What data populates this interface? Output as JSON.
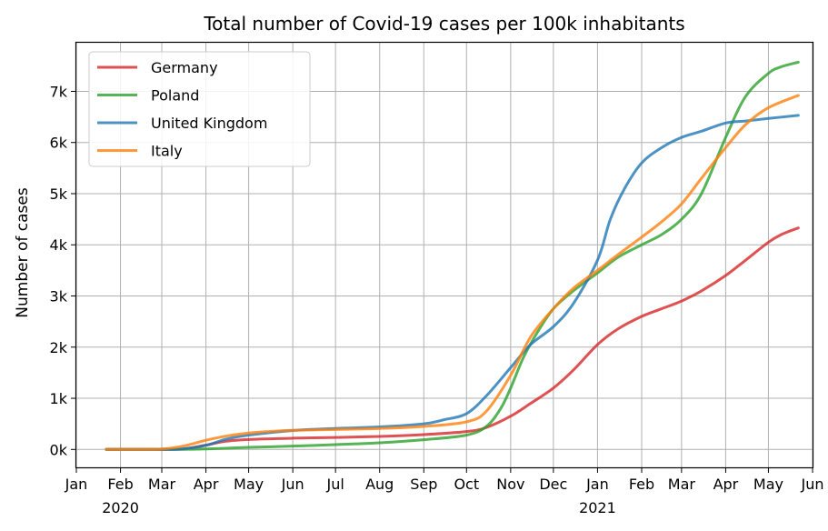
{
  "chart_data": {
    "type": "line",
    "title": "Total number of Covid-19 cases per 100k inhabitants",
    "xlabel": "",
    "ylabel": "Number of cases",
    "xlim": [
      "2020-01-01",
      "2021-06-01"
    ],
    "ylim": [
      -350,
      7950
    ],
    "grid": true,
    "legend_position": "top-left",
    "x_ticks": [
      {
        "date": "2020-01-01",
        "label": "Jan"
      },
      {
        "date": "2020-02-01",
        "label": "Feb"
      },
      {
        "date": "2020-03-01",
        "label": "Mar"
      },
      {
        "date": "2020-04-01",
        "label": "Apr"
      },
      {
        "date": "2020-05-01",
        "label": "May"
      },
      {
        "date": "2020-06-01",
        "label": "Jun"
      },
      {
        "date": "2020-07-01",
        "label": "Jul"
      },
      {
        "date": "2020-08-01",
        "label": "Aug"
      },
      {
        "date": "2020-09-01",
        "label": "Sep"
      },
      {
        "date": "2020-10-01",
        "label": "Oct"
      },
      {
        "date": "2020-11-01",
        "label": "Nov"
      },
      {
        "date": "2020-12-01",
        "label": "Dec"
      },
      {
        "date": "2021-01-01",
        "label": "Jan"
      },
      {
        "date": "2021-02-01",
        "label": "Feb"
      },
      {
        "date": "2021-03-01",
        "label": "Mar"
      },
      {
        "date": "2021-04-01",
        "label": "Apr"
      },
      {
        "date": "2021-05-01",
        "label": "May"
      },
      {
        "date": "2021-06-01",
        "label": "Jun"
      }
    ],
    "year_labels": [
      {
        "date": "2020-02-01",
        "label": "2020"
      },
      {
        "date": "2021-01-01",
        "label": "2021"
      }
    ],
    "y_ticks": [
      {
        "value": 0,
        "label": "0k"
      },
      {
        "value": 1000,
        "label": "1k"
      },
      {
        "value": 2000,
        "label": "2k"
      },
      {
        "value": 3000,
        "label": "3k"
      },
      {
        "value": 4000,
        "label": "4k"
      },
      {
        "value": 5000,
        "label": "5k"
      },
      {
        "value": 6000,
        "label": "6k"
      },
      {
        "value": 7000,
        "label": "7k"
      }
    ],
    "series": [
      {
        "name": "Germany",
        "color": "#d62728",
        "points": [
          [
            "2020-01-22",
            0
          ],
          [
            "2020-03-01",
            0
          ],
          [
            "2020-03-15",
            6
          ],
          [
            "2020-04-01",
            85
          ],
          [
            "2020-04-15",
            160
          ],
          [
            "2020-05-01",
            195
          ],
          [
            "2020-06-01",
            220
          ],
          [
            "2020-07-01",
            235
          ],
          [
            "2020-08-01",
            255
          ],
          [
            "2020-09-01",
            290
          ],
          [
            "2020-10-01",
            350
          ],
          [
            "2020-10-15",
            430
          ],
          [
            "2020-11-01",
            650
          ],
          [
            "2020-11-15",
            900
          ],
          [
            "2020-12-01",
            1200
          ],
          [
            "2020-12-15",
            1550
          ],
          [
            "2021-01-01",
            2050
          ],
          [
            "2021-01-15",
            2350
          ],
          [
            "2021-02-01",
            2600
          ],
          [
            "2021-02-15",
            2750
          ],
          [
            "2021-03-01",
            2900
          ],
          [
            "2021-03-15",
            3100
          ],
          [
            "2021-04-01",
            3400
          ],
          [
            "2021-04-15",
            3700
          ],
          [
            "2021-05-01",
            4050
          ],
          [
            "2021-05-10",
            4200
          ],
          [
            "2021-05-22",
            4330
          ]
        ]
      },
      {
        "name": "Poland",
        "color": "#2ca02c",
        "points": [
          [
            "2020-01-22",
            0
          ],
          [
            "2020-03-10",
            0
          ],
          [
            "2020-04-01",
            10
          ],
          [
            "2020-05-01",
            40
          ],
          [
            "2020-06-01",
            65
          ],
          [
            "2020-07-01",
            95
          ],
          [
            "2020-08-01",
            130
          ],
          [
            "2020-09-01",
            190
          ],
          [
            "2020-10-01",
            280
          ],
          [
            "2020-10-15",
            450
          ],
          [
            "2020-10-25",
            800
          ],
          [
            "2020-11-01",
            1200
          ],
          [
            "2020-11-10",
            1800
          ],
          [
            "2020-11-20",
            2300
          ],
          [
            "2020-12-01",
            2750
          ],
          [
            "2020-12-15",
            3100
          ],
          [
            "2021-01-01",
            3450
          ],
          [
            "2021-01-15",
            3750
          ],
          [
            "2021-02-01",
            4000
          ],
          [
            "2021-02-15",
            4200
          ],
          [
            "2021-03-01",
            4500
          ],
          [
            "2021-03-15",
            5000
          ],
          [
            "2021-04-01",
            6100
          ],
          [
            "2021-04-15",
            6900
          ],
          [
            "2021-05-01",
            7350
          ],
          [
            "2021-05-10",
            7480
          ],
          [
            "2021-05-22",
            7570
          ]
        ]
      },
      {
        "name": "United Kingdom",
        "color": "#1f77b4",
        "points": [
          [
            "2020-01-22",
            0
          ],
          [
            "2020-03-01",
            0
          ],
          [
            "2020-03-15",
            10
          ],
          [
            "2020-04-01",
            80
          ],
          [
            "2020-04-15",
            200
          ],
          [
            "2020-05-01",
            280
          ],
          [
            "2020-06-01",
            370
          ],
          [
            "2020-07-01",
            410
          ],
          [
            "2020-08-01",
            440
          ],
          [
            "2020-09-01",
            500
          ],
          [
            "2020-09-15",
            580
          ],
          [
            "2020-10-01",
            700
          ],
          [
            "2020-10-15",
            1050
          ],
          [
            "2020-11-01",
            1600
          ],
          [
            "2020-11-15",
            2050
          ],
          [
            "2020-12-01",
            2400
          ],
          [
            "2020-12-15",
            2850
          ],
          [
            "2021-01-01",
            3700
          ],
          [
            "2021-01-10",
            4500
          ],
          [
            "2021-01-20",
            5100
          ],
          [
            "2021-02-01",
            5600
          ],
          [
            "2021-02-15",
            5900
          ],
          [
            "2021-03-01",
            6100
          ],
          [
            "2021-03-15",
            6220
          ],
          [
            "2021-04-01",
            6380
          ],
          [
            "2021-04-15",
            6420
          ],
          [
            "2021-05-01",
            6470
          ],
          [
            "2021-05-22",
            6530
          ]
        ]
      },
      {
        "name": "Italy",
        "color": "#ff7f0e",
        "points": [
          [
            "2020-01-22",
            0
          ],
          [
            "2020-02-25",
            0
          ],
          [
            "2020-03-15",
            60
          ],
          [
            "2020-04-01",
            180
          ],
          [
            "2020-04-15",
            260
          ],
          [
            "2020-05-01",
            320
          ],
          [
            "2020-05-15",
            350
          ],
          [
            "2020-06-01",
            375
          ],
          [
            "2020-07-01",
            390
          ],
          [
            "2020-08-01",
            410
          ],
          [
            "2020-09-01",
            450
          ],
          [
            "2020-10-01",
            540
          ],
          [
            "2020-10-15",
            750
          ],
          [
            "2020-11-01",
            1450
          ],
          [
            "2020-11-15",
            2200
          ],
          [
            "2020-12-01",
            2750
          ],
          [
            "2020-12-15",
            3150
          ],
          [
            "2021-01-01",
            3500
          ],
          [
            "2021-01-15",
            3800
          ],
          [
            "2021-02-01",
            4150
          ],
          [
            "2021-02-15",
            4450
          ],
          [
            "2021-03-01",
            4800
          ],
          [
            "2021-03-15",
            5300
          ],
          [
            "2021-04-01",
            5900
          ],
          [
            "2021-04-15",
            6350
          ],
          [
            "2021-05-01",
            6680
          ],
          [
            "2021-05-22",
            6920
          ]
        ]
      }
    ]
  }
}
